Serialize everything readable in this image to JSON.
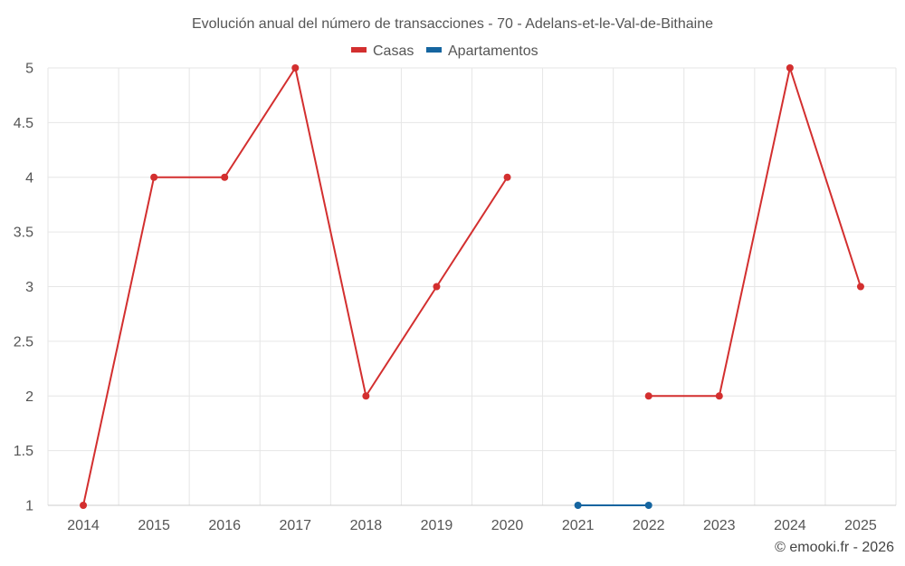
{
  "chart_data": {
    "type": "line",
    "title": "Evolución anual del número de transacciones - 70 - Adelans-et-le-Val-de-Bithaine",
    "categories": [
      "2014",
      "2015",
      "2016",
      "2017",
      "2018",
      "2019",
      "2020",
      "2021",
      "2022",
      "2023",
      "2024",
      "2025"
    ],
    "series": [
      {
        "name": "Casas",
        "color": "#d32f2f",
        "values": [
          1,
          4,
          4,
          5,
          2,
          3,
          4,
          null,
          2,
          2,
          5,
          3
        ]
      },
      {
        "name": "Apartamentos",
        "color": "#1565a0",
        "values": [
          null,
          null,
          null,
          null,
          null,
          null,
          null,
          1,
          1,
          null,
          null,
          null
        ]
      }
    ],
    "ylim": [
      1,
      5
    ],
    "yticks": [
      "1",
      "1.5",
      "2",
      "2.5",
      "3",
      "3.5",
      "4",
      "4.5",
      "5"
    ],
    "xlabel": "",
    "ylabel": "",
    "grid": true,
    "legend_position": "top-center"
  },
  "credit": "© emooki.fr - 2026"
}
